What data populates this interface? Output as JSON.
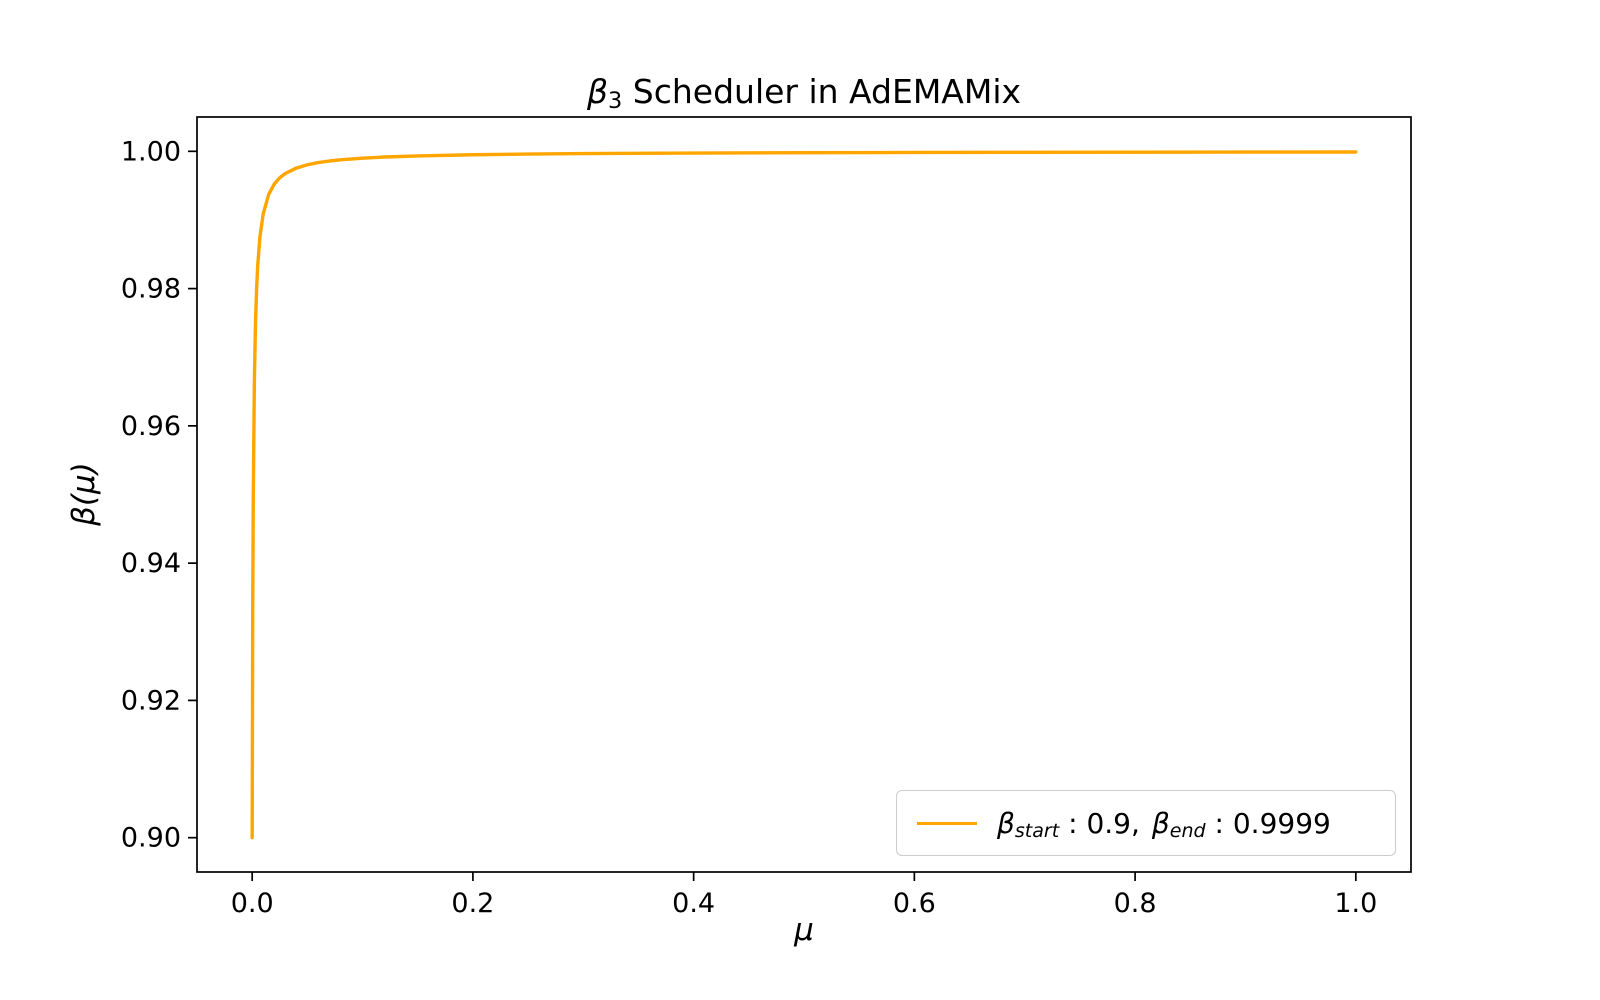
{
  "figure": {
    "title_beta": "β",
    "title_sub": "3",
    "title_rest": " Scheduler in AdEMAMix",
    "xlabel": "μ",
    "ylabel": "β(μ)"
  },
  "legend": {
    "beta1": "β",
    "sub1": "start",
    "val1": ": 0.9,",
    "beta2": "β",
    "sub2": "end",
    "val2": ": 0.9999"
  },
  "chart_data": {
    "type": "line",
    "title": "β₃ Scheduler in AdEMAMix",
    "xlabel": "μ",
    "ylabel": "β(μ)",
    "line_color": "#FFA500",
    "line_width": 3.4,
    "grid": false,
    "legend_position": "lower right",
    "xlim": [
      -0.05,
      1.05
    ],
    "ylim": [
      0.895,
      1.005
    ],
    "x_ticks": [
      0.0,
      0.2,
      0.4,
      0.6,
      0.8,
      1.0
    ],
    "x_tick_labels": [
      "0.0",
      "0.2",
      "0.4",
      "0.6",
      "0.8",
      "1.0"
    ],
    "y_ticks": [
      0.9,
      0.92,
      0.94,
      0.96,
      0.98,
      1.0
    ],
    "y_tick_labels": [
      "0.90",
      "0.92",
      "0.94",
      "0.96",
      "0.98",
      "1.00"
    ],
    "beta_start": 0.9,
    "beta_end": 0.9999,
    "series": [
      {
        "name": "β_start: 0.9, β_end: 0.9999",
        "x": [
          0,
          0.0005,
          0.001,
          0.002,
          0.003,
          0.004,
          0.005,
          0.007,
          0.01,
          0.015,
          0.02,
          0.025,
          0.03,
          0.04,
          0.05,
          0.06,
          0.07,
          0.08,
          0.1,
          0.12,
          0.15,
          0.2,
          0.25,
          0.3,
          0.4,
          0.5,
          0.6,
          0.7,
          0.8,
          0.9,
          1.0
        ],
        "y": [
          0.9,
          0.93329,
          0.94996,
          0.96664,
          0.97498,
          0.97998,
          0.98332,
          0.98749,
          0.9909,
          0.99374,
          0.99523,
          0.99615,
          0.99677,
          0.99756,
          0.99804,
          0.99836,
          0.99859,
          0.99876,
          0.999,
          0.99917,
          0.99933,
          0.9995,
          0.9996,
          0.99967,
          0.99975,
          0.9998,
          0.99983,
          0.99986,
          0.99987,
          0.99989,
          0.9999
        ]
      }
    ]
  }
}
